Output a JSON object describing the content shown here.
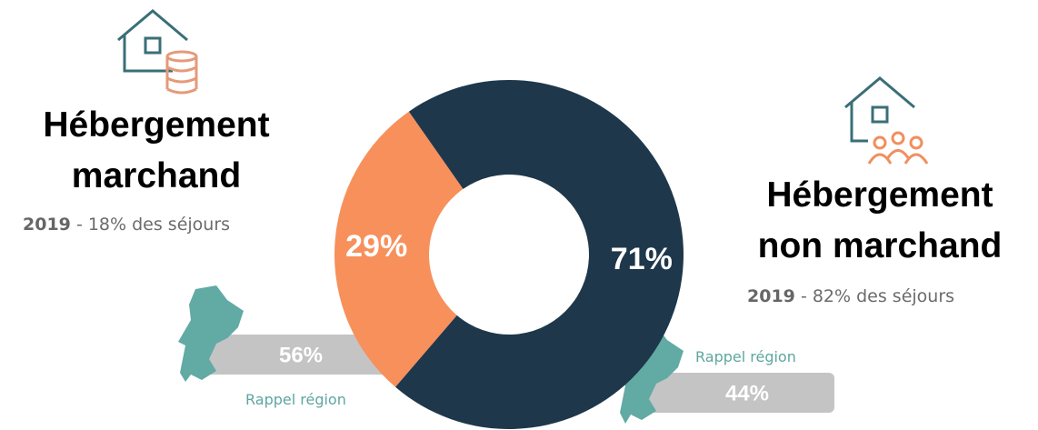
{
  "chart_data": {
    "type": "pie",
    "donut": true,
    "categories": [
      "Hébergement marchand",
      "Hébergement non marchand"
    ],
    "values": [
      29,
      71
    ],
    "value_labels": [
      "29%",
      "71%"
    ],
    "colors": [
      "#f7905b",
      "#1e374b"
    ]
  },
  "annotations": {
    "left": {
      "year": "2019",
      "share": "- 18% des séjours",
      "region_value": "56%",
      "region_label": "Rappel région"
    },
    "right": {
      "year": "2019",
      "share": "- 82% des séjours",
      "region_value": "44%",
      "region_label": "Rappel région"
    }
  }
}
